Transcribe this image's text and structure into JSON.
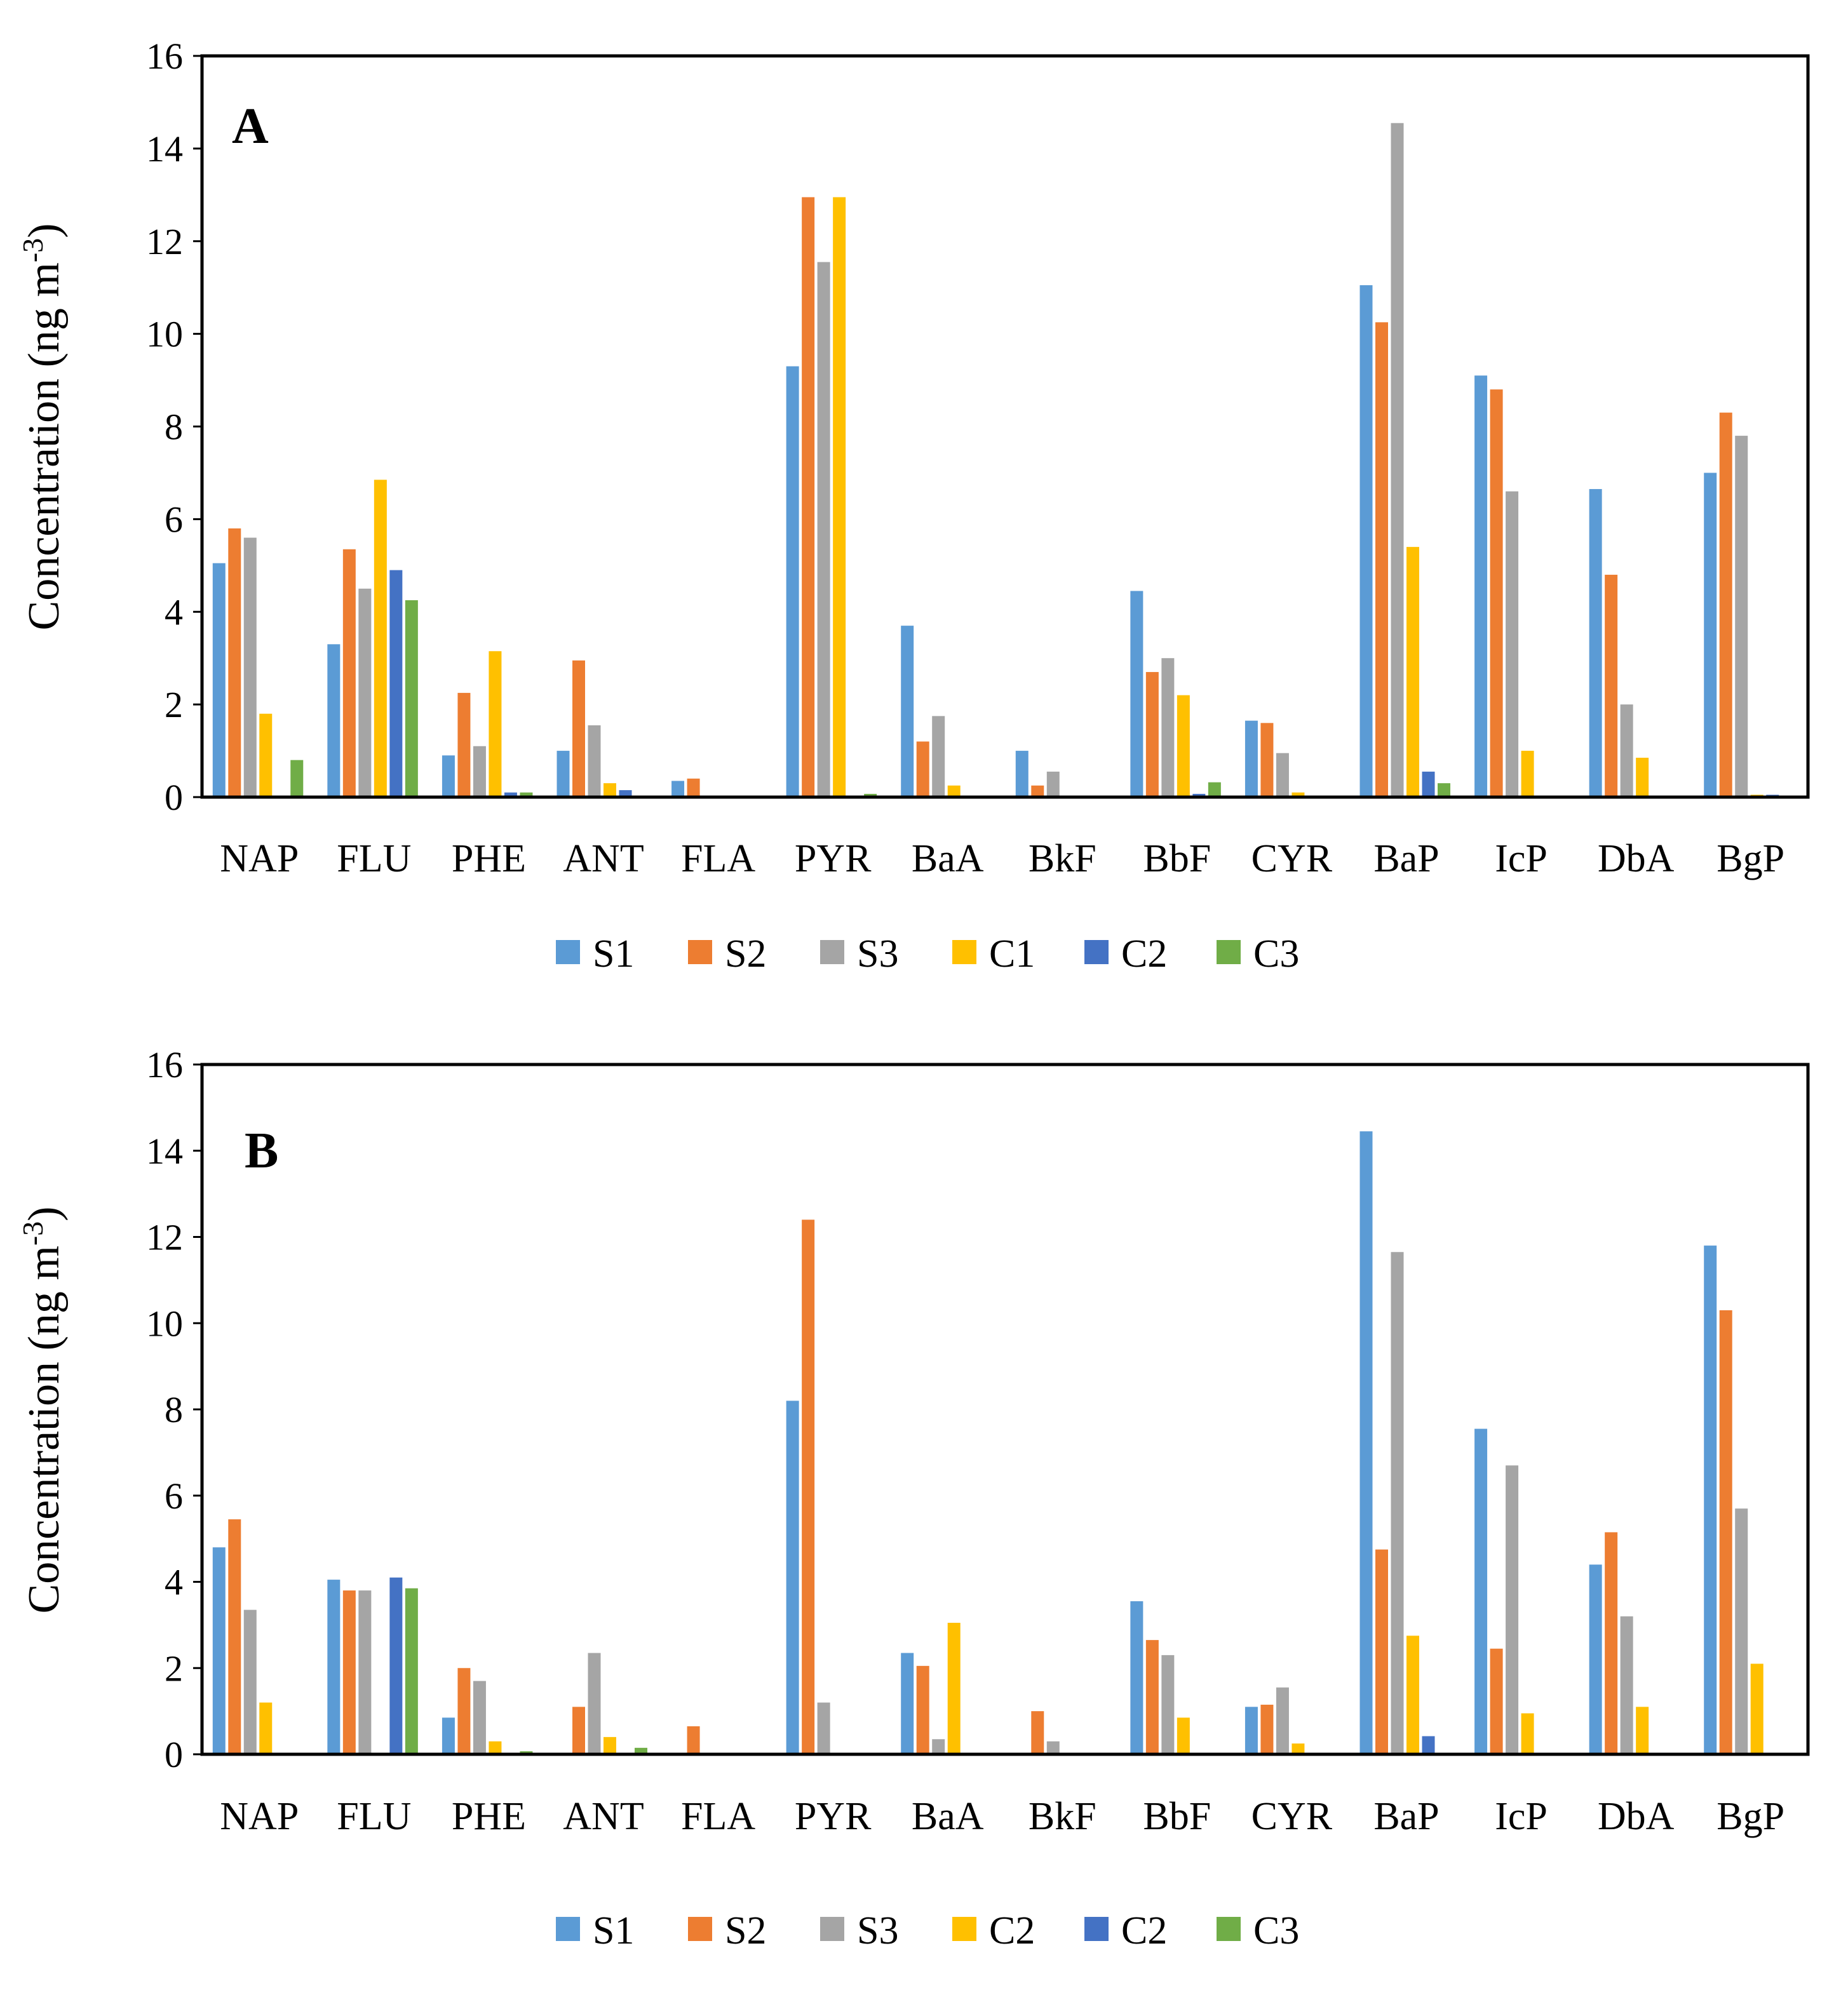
{
  "colors": {
    "S1": "#5b9bd5",
    "S2": "#ed7d31",
    "S3": "#a5a5a5",
    "C1": "#ffc000",
    "C2": "#4472c4",
    "C3": "#70ad47"
  },
  "chart_data": [
    {
      "type": "bar",
      "panel_label": "A",
      "title": "",
      "ylabel": "Concentration (ng m",
      "ylabel_sup": "-3",
      "ylabel_close": ")",
      "ylim": [
        0,
        16
      ],
      "yticks": [
        "0",
        "2",
        "4",
        "6",
        "8",
        "10",
        "12",
        "14",
        "16"
      ],
      "categories": [
        "NAP",
        "FLU",
        "PHE",
        "ANT",
        "FLA",
        "PYR",
        "BaA",
        "BkF",
        "BbF",
        "CYR",
        "BaP",
        "IcP",
        "DbA",
        "BgP"
      ],
      "legend_position": "bottom",
      "series": [
        {
          "name": "S1",
          "color_key": "S1",
          "values": [
            5.05,
            3.3,
            0.9,
            1.0,
            0.35,
            9.3,
            3.7,
            1.0,
            4.45,
            1.65,
            11.05,
            9.1,
            6.65,
            7.0
          ]
        },
        {
          "name": "S2",
          "color_key": "S2",
          "values": [
            5.8,
            5.35,
            2.25,
            2.95,
            0.4,
            12.95,
            1.2,
            0.25,
            2.7,
            1.6,
            10.25,
            8.8,
            4.8,
            8.3
          ]
        },
        {
          "name": "S3",
          "color_key": "S3",
          "values": [
            5.6,
            4.5,
            1.1,
            1.55,
            0.0,
            11.55,
            1.75,
            0.55,
            3.0,
            0.95,
            14.55,
            6.6,
            2.0,
            7.8
          ]
        },
        {
          "name": "C1",
          "color_key": "C1",
          "values": [
            1.8,
            6.85,
            3.15,
            0.3,
            0.0,
            12.95,
            0.25,
            0.0,
            2.2,
            0.1,
            5.4,
            1.0,
            0.85,
            0.05
          ]
        },
        {
          "name": "C2",
          "color_key": "C2",
          "values": [
            0.0,
            4.9,
            0.1,
            0.15,
            0.0,
            0.0,
            0.0,
            0.0,
            0.07,
            0.0,
            0.55,
            0.0,
            0.0,
            0.05
          ]
        },
        {
          "name": "C3",
          "color_key": "C3",
          "values": [
            0.8,
            4.25,
            0.1,
            0.0,
            0.0,
            0.07,
            0.0,
            0.0,
            0.32,
            0.0,
            0.3,
            0.0,
            0.0,
            0.0
          ]
        }
      ]
    },
    {
      "type": "bar",
      "panel_label": "B",
      "title": "",
      "ylabel": "Concentration (ng m",
      "ylabel_sup": "-3",
      "ylabel_close": ")",
      "ylim": [
        0,
        16
      ],
      "yticks": [
        "0",
        "2",
        "4",
        "6",
        "8",
        "10",
        "12",
        "14",
        "16"
      ],
      "categories": [
        "NAP",
        "FLU",
        "PHE",
        "ANT",
        "FLA",
        "PYR",
        "BaA",
        "BkF",
        "BbF",
        "CYR",
        "BaP",
        "IcP",
        "DbA",
        "BgP"
      ],
      "legend_position": "bottom",
      "series": [
        {
          "name": "S1",
          "color_key": "S1",
          "values": [
            4.8,
            4.05,
            0.85,
            0.0,
            0.0,
            8.2,
            2.35,
            0.0,
            3.55,
            1.1,
            14.45,
            7.55,
            4.4,
            11.8
          ]
        },
        {
          "name": "S2",
          "color_key": "S2",
          "values": [
            5.45,
            3.8,
            2.0,
            1.1,
            0.65,
            12.4,
            2.05,
            1.0,
            2.65,
            1.15,
            4.75,
            2.45,
            5.15,
            10.3
          ]
        },
        {
          "name": "S3",
          "color_key": "S3",
          "values": [
            3.35,
            3.8,
            1.7,
            2.35,
            0.0,
            1.2,
            0.35,
            0.3,
            2.3,
            1.55,
            11.65,
            6.7,
            3.2,
            5.7
          ]
        },
        {
          "name": "C2",
          "color_key": "C1",
          "values": [
            1.2,
            0.0,
            0.3,
            0.4,
            0.0,
            0.0,
            3.05,
            0.0,
            0.85,
            0.25,
            2.75,
            0.95,
            1.1,
            2.1
          ]
        },
        {
          "name": "C2",
          "color_key": "C2",
          "values": [
            0.0,
            4.1,
            0.0,
            0.0,
            0.0,
            0.0,
            0.0,
            0.0,
            0.0,
            0.0,
            0.42,
            0.0,
            0.0,
            0.0
          ]
        },
        {
          "name": "C3",
          "color_key": "C3",
          "values": [
            0.0,
            3.85,
            0.07,
            0.15,
            0.0,
            0.0,
            0.0,
            0.0,
            0.0,
            0.0,
            0.0,
            0.0,
            0.0,
            0.0
          ]
        }
      ]
    }
  ]
}
